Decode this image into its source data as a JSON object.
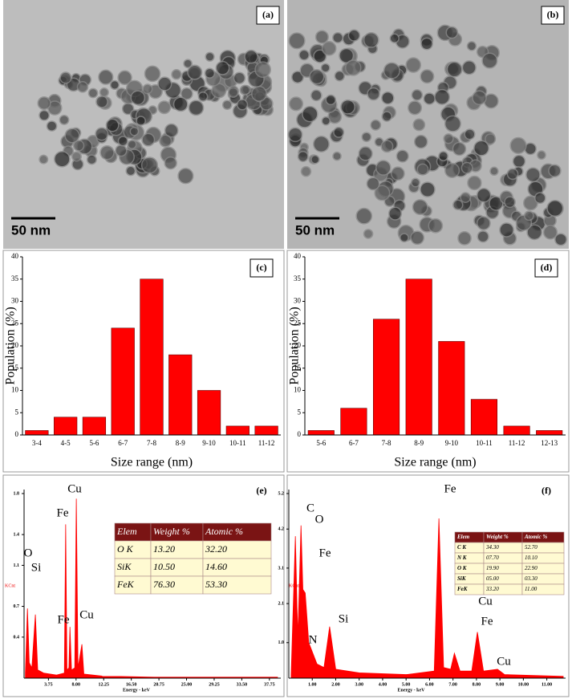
{
  "images": [
    {
      "label": "(a)",
      "scale_bar": "50 nm"
    },
    {
      "label": "(b)",
      "scale_bar": "50 nm"
    }
  ],
  "chart_data": [
    {
      "type": "bar",
      "label": "(c)",
      "x_label": "Size range (nm)",
      "y_label": "Population (%)",
      "categories": [
        "3-4",
        "4-5",
        "5-6",
        "6-7",
        "7-8",
        "8-9",
        "9-10",
        "10-11",
        "11-12"
      ],
      "values": [
        1,
        4,
        4,
        24,
        35,
        18,
        10,
        2,
        2
      ],
      "color": "#ff0000",
      "ylim": [
        0,
        40
      ],
      "yticks": [
        0,
        5,
        10,
        15,
        20,
        25,
        30,
        35,
        40
      ]
    },
    {
      "type": "bar",
      "label": "(d)",
      "x_label": "Size range (nm)",
      "y_label": "Population (%)",
      "categories": [
        "5-6",
        "6-7",
        "7-8",
        "8-9",
        "9-10",
        "10-11",
        "11-12",
        "12-13"
      ],
      "values": [
        1,
        6,
        26,
        35,
        21,
        8,
        2,
        1
      ],
      "color": "#ff0000",
      "ylim": [
        0,
        40
      ],
      "yticks": [
        0,
        5,
        10,
        15,
        20,
        25,
        30,
        35,
        40
      ]
    },
    {
      "type": "line",
      "label": "(e)",
      "x_label": "Energy - keV",
      "y_label": "KCnt",
      "x": [
        0.2,
        0.52,
        0.8,
        1.2,
        1.74,
        2.1,
        3,
        5,
        6.2,
        6.4,
        6.6,
        6.9,
        7.06,
        7.3,
        7.8,
        8.04,
        8.3,
        8.9,
        9.2,
        12,
        20,
        39
      ],
      "values": [
        0.05,
        0.68,
        0.15,
        0.1,
        0.62,
        0.08,
        0.05,
        0.03,
        0.05,
        1.5,
        0.08,
        0.1,
        0.5,
        0.08,
        0.1,
        1.75,
        0.1,
        0.33,
        0.04,
        0.02,
        0.01,
        0.01
      ],
      "color": "#ff0000",
      "xlim": [
        0,
        39.5
      ],
      "xticks": [
        3.75,
        {
          "value": 8,
          "label": "8.00"
        },
        12.25,
        {
          "value": 16.5,
          "label": "16.50"
        },
        20.75,
        {
          "value": 25,
          "label": "25.00"
        },
        29.25,
        {
          "value": 33.5,
          "label": "33.50"
        },
        37.75
      ],
      "ylim": [
        0,
        1.8
      ],
      "yticks": [
        0.4,
        0.7,
        1.1,
        1.4,
        1.8
      ],
      "annotations": [
        "O",
        "Si",
        "Fe",
        "Cu",
        "Fe",
        "Cu"
      ],
      "table": {
        "columns": [
          "Elem",
          "Weight %",
          "Atomic %"
        ],
        "rows": [
          [
            "O K",
            "13.20",
            "32.20"
          ],
          [
            "SiK",
            "10.50",
            "14.60"
          ],
          [
            "FeK",
            "76.30",
            "53.30"
          ]
        ]
      }
    },
    {
      "type": "line",
      "label": "(f)",
      "x_label": "Energy - keV",
      "y_label": "KCnt",
      "x": [
        0.1,
        0.28,
        0.35,
        0.39,
        0.52,
        0.6,
        0.7,
        0.85,
        1.2,
        1.5,
        1.74,
        2,
        3,
        5,
        6.2,
        6.4,
        6.6,
        6.9,
        7.06,
        7.3,
        7.8,
        8.04,
        8.3,
        8.9,
        9.2,
        11.7
      ],
      "values": [
        0.1,
        4,
        2,
        1.2,
        4.3,
        2.5,
        2.4,
        1,
        0.4,
        0.3,
        1.45,
        0.25,
        0.15,
        0.1,
        0.2,
        4.5,
        0.3,
        0.25,
        0.7,
        0.2,
        0.2,
        1.3,
        0.2,
        0.25,
        0.1,
        0.05
      ],
      "color": "#ff0000",
      "xlim": [
        0,
        11.8
      ],
      "xticks": [
        {
          "value": 1,
          "label": "1.00"
        },
        {
          "value": 2,
          "label": "2.00"
        },
        {
          "value": 3,
          "label": "3.00"
        },
        {
          "value": 4,
          "label": "4.00"
        },
        {
          "value": 5,
          "label": "5.00"
        },
        {
          "value": 6,
          "label": "6.00"
        },
        {
          "value": 7,
          "label": "7.00"
        },
        {
          "value": 8,
          "label": "8.00"
        },
        {
          "value": 9,
          "label": "9.00"
        },
        {
          "value": 10,
          "label": "10.00"
        },
        {
          "value": 11,
          "label": "11.00"
        }
      ],
      "ylim": [
        0,
        5.2
      ],
      "yticks": [
        {
          "value": 1,
          "label": "1.0"
        },
        2.1,
        3.1,
        4.2,
        5.2
      ],
      "annotations": [
        "C",
        "O",
        "Fe",
        "N",
        "Si",
        "Fe",
        "Fe",
        "Cu",
        "Cu"
      ],
      "table": {
        "columns": [
          "Elem",
          "Weight %",
          "Atomic %"
        ],
        "rows": [
          [
            "C K",
            "34.30",
            "52.70"
          ],
          [
            "N K",
            "07.70",
            "10.10"
          ],
          [
            "O K",
            "19.90",
            "22.90"
          ],
          [
            "SiK",
            "05.00",
            "03.30"
          ],
          [
            "FeK",
            "33.20",
            "11.00"
          ]
        ]
      }
    }
  ]
}
